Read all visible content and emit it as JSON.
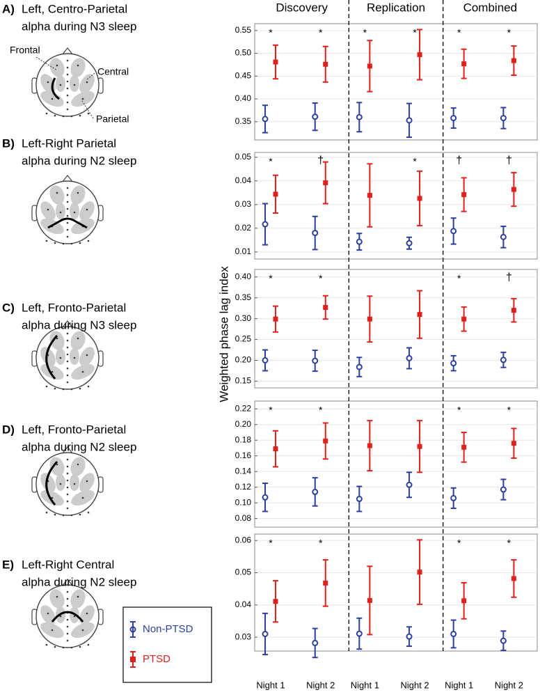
{
  "figure": {
    "groups": [
      "Discovery",
      "Replication",
      "Combined"
    ],
    "ylabel": "Weighted phase lag index",
    "categories": [
      "Night 1",
      "Night 2",
      "Night 1",
      "Night 2",
      "Night 1",
      "Night 2"
    ]
  },
  "chart_data": [
    {
      "type": "errorbar",
      "label": "A)",
      "title": [
        "Left, Centro-Parietal",
        "alpha during N3 sleep"
      ],
      "annotations": [
        "Frontal",
        "Central",
        "Parietal"
      ],
      "ylim": [
        0.31,
        0.565
      ],
      "yticks": [
        0.35,
        {
          "value": 0.4,
          "label": "0.40"
        },
        0.45,
        {
          "value": 0.5,
          "label": "0.50"
        },
        0.55
      ],
      "grid": true,
      "markers": [
        "*",
        "*",
        "*",
        "*",
        "*",
        "*"
      ],
      "series": [
        {
          "name": "Non-PTSD",
          "color": "#2b3fa0",
          "values": [
            0.356,
            0.361,
            0.36,
            0.353,
            0.358,
            0.358
          ],
          "errors": [
            0.03,
            0.03,
            0.032,
            0.037,
            0.022,
            0.023
          ]
        },
        {
          "name": "PTSD",
          "color": "#e0201b",
          "values": [
            0.481,
            0.476,
            0.472,
            0.497,
            0.477,
            0.484
          ],
          "errors": [
            0.037,
            0.039,
            0.056,
            0.055,
            0.032,
            0.032
          ]
        }
      ]
    },
    {
      "type": "errorbar",
      "label": "B)",
      "title": [
        "Left-Right Parietal",
        "alpha during N2 sleep"
      ],
      "ylim": [
        0.007,
        0.052
      ],
      "yticks": [
        0.01,
        0.02,
        0.03,
        0.04,
        0.05
      ],
      "grid": true,
      "markers": [
        "*",
        "†",
        null,
        "*",
        "†",
        "†"
      ],
      "series": [
        {
          "name": "Non-PTSD",
          "color": "#2b3fa0",
          "values": [
            0.0217,
            0.018,
            0.0143,
            0.0137,
            0.0188,
            0.0163
          ],
          "errors": [
            0.0087,
            0.007,
            0.0035,
            0.0025,
            0.0055,
            0.0045
          ]
        },
        {
          "name": "PTSD",
          "color": "#e0201b",
          "values": [
            0.0344,
            0.0392,
            0.0339,
            0.0326,
            0.0342,
            0.0364
          ],
          "errors": [
            0.008,
            0.0088,
            0.0133,
            0.0115,
            0.0071,
            0.0071
          ]
        }
      ]
    },
    {
      "type": "errorbar",
      "label": "C)",
      "title": [
        "Left, Fronto-Parietal",
        "alpha during N3 sleep"
      ],
      "ylim": [
        0.134,
        0.418
      ],
      "yticks": [
        0.15,
        {
          "value": 0.2,
          "label": "0.20"
        },
        0.25,
        {
          "value": 0.3,
          "label": "0.30"
        },
        0.35,
        {
          "value": 0.4,
          "label": "0.40"
        }
      ],
      "grid": true,
      "markers": [
        "*",
        "*",
        null,
        null,
        "*",
        "†"
      ],
      "series": [
        {
          "name": "Non-PTSD",
          "color": "#2b3fa0",
          "values": [
            0.2,
            0.199,
            0.184,
            0.205,
            0.193,
            0.201
          ],
          "errors": [
            0.025,
            0.025,
            0.023,
            0.025,
            0.018,
            0.018
          ]
        },
        {
          "name": "PTSD",
          "color": "#e0201b",
          "values": [
            0.299,
            0.327,
            0.299,
            0.31,
            0.299,
            0.32
          ],
          "errors": [
            0.031,
            0.028,
            0.055,
            0.057,
            0.029,
            0.028
          ]
        }
      ]
    },
    {
      "type": "errorbar",
      "label": "D)",
      "title": [
        "Left, Fronto-Parietal",
        "alpha during N2 sleep"
      ],
      "ylim": [
        0.069,
        0.23
      ],
      "yticks": [
        0.08,
        {
          "value": 0.1,
          "label": "0.10"
        },
        0.12,
        0.14,
        0.16,
        0.18,
        {
          "value": 0.2,
          "label": "0.20"
        },
        0.22
      ],
      "grid": true,
      "markers": [
        "*",
        "*",
        null,
        null,
        "*",
        "*"
      ],
      "series": [
        {
          "name": "Non-PTSD",
          "color": "#2b3fa0",
          "values": [
            0.107,
            0.114,
            0.105,
            0.123,
            0.106,
            0.117
          ],
          "errors": [
            0.018,
            0.018,
            0.016,
            0.016,
            0.013,
            0.013
          ]
        },
        {
          "name": "PTSD",
          "color": "#e0201b",
          "values": [
            0.169,
            0.179,
            0.173,
            0.172,
            0.171,
            0.176
          ],
          "errors": [
            0.023,
            0.023,
            0.032,
            0.033,
            0.019,
            0.019
          ]
        }
      ]
    },
    {
      "type": "errorbar",
      "label": "E)",
      "title": [
        "Left-Right Central",
        "alpha during N2 sleep"
      ],
      "ylim": [
        0.0257,
        0.062
      ],
      "yticks": [
        0.03,
        0.04,
        0.05,
        0.06
      ],
      "grid": true,
      "markers": [
        "*",
        "*",
        null,
        null,
        "*",
        "*"
      ],
      "series": [
        {
          "name": "Non-PTSD",
          "color": "#2b3fa0",
          "values": [
            0.031,
            0.0282,
            0.0311,
            0.0302,
            0.031,
            0.0289
          ],
          "errors": [
            0.0064,
            0.0045,
            0.0048,
            0.003,
            0.0043,
            0.003
          ]
        },
        {
          "name": "PTSD",
          "color": "#e0201b",
          "values": [
            0.0411,
            0.0468,
            0.0414,
            0.0502,
            0.0413,
            0.0482
          ],
          "errors": [
            0.0064,
            0.0072,
            0.0106,
            0.01,
            0.0056,
            0.0058
          ]
        }
      ]
    }
  ]
}
